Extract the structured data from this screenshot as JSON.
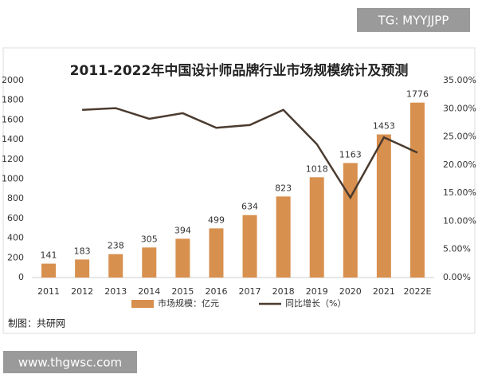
{
  "tag": "TG: MYYJJPP",
  "footer": "www.thgwsc.com",
  "chart_data": {
    "type": "bar",
    "title": "2011-2022年中国设计师品牌行业市场规模统计及预测",
    "source": "制图：共研网",
    "categories": [
      "2011",
      "2012",
      "2013",
      "2014",
      "2015",
      "2016",
      "2017",
      "2018",
      "2019",
      "2020",
      "2021",
      "2022E"
    ],
    "series": [
      {
        "name": "市场规模：亿元",
        "type": "bar",
        "color": "#d8904f",
        "values": [
          141,
          183,
          238,
          305,
          394,
          499,
          634,
          823,
          1018,
          1163,
          1453,
          1776
        ]
      },
      {
        "name": "同比增长（%）",
        "type": "line",
        "axis": "y2",
        "color": "#4b3b2f",
        "values": [
          null,
          29.8,
          30.1,
          28.2,
          29.2,
          26.6,
          27.1,
          29.8,
          23.7,
          14.2,
          24.9,
          22.2
        ]
      }
    ],
    "ylim": [
      0,
      2000
    ],
    "yticks": [
      0,
      200,
      400,
      600,
      800,
      1000,
      1200,
      1400,
      1600,
      1800,
      2000
    ],
    "y2lim": [
      0,
      35
    ],
    "y2ticks": [
      {
        "value": 0,
        "label": "0.00%"
      },
      {
        "value": 5,
        "label": "5.00%"
      },
      {
        "value": 10,
        "label": "10.00%"
      },
      {
        "value": 15,
        "label": "15.00%"
      },
      {
        "value": 20,
        "label": "20.00%"
      },
      {
        "value": 25,
        "label": "25.00%"
      },
      {
        "value": 30,
        "label": "30.00%"
      },
      {
        "value": 35,
        "label": "35.00%"
      }
    ]
  }
}
